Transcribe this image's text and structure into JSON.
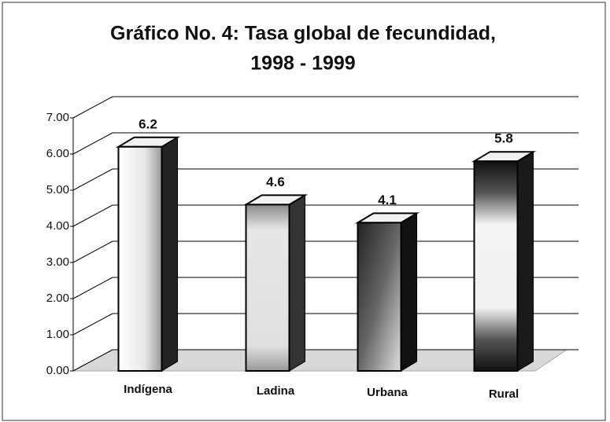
{
  "chart_data": {
    "type": "bar3d",
    "title": [
      "Gráfico No. 4: Tasa global de fecundidad,",
      "1998 - 1999"
    ],
    "categories": [
      "Indígena",
      "Ladina",
      "Urbana",
      "Rural"
    ],
    "values": [
      6.2,
      4.6,
      4.1,
      5.8
    ],
    "ylim": [
      0,
      7
    ],
    "yticks": [
      {
        "value": 0,
        "label": "0.00"
      },
      {
        "value": 1,
        "label": "1.00"
      },
      {
        "value": 2,
        "label": "2.00"
      },
      {
        "value": 3,
        "label": "3.00"
      },
      {
        "value": 4,
        "label": "4.00"
      },
      {
        "value": 5,
        "label": "5.00"
      },
      {
        "value": 6,
        "label": "6.00"
      },
      {
        "value": 7,
        "label": "7.00"
      }
    ],
    "grid": true
  }
}
